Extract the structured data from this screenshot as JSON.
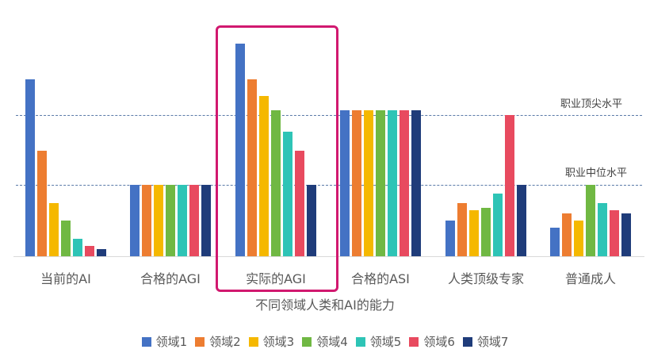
{
  "chart_data": {
    "type": "bar",
    "title": "",
    "xlabel": "不同领域人类和AI的能力",
    "ylabel": "",
    "ylim": [
      0,
      160
    ],
    "grid": false,
    "legend_position": "bottom",
    "categories": [
      "当前的AI",
      "合格的AGI",
      "实际的AGI",
      "合格的ASI",
      "人类顶级专家",
      "普通成人"
    ],
    "series": [
      {
        "name": "领域1",
        "color": "#4472c4",
        "values": [
          124,
          50,
          149,
          102,
          25,
          20
        ]
      },
      {
        "name": "领域2",
        "color": "#ed7d31",
        "values": [
          74,
          50,
          124,
          102,
          37,
          30
        ]
      },
      {
        "name": "领域3",
        "color": "#f5b800",
        "values": [
          37,
          50,
          112,
          102,
          32,
          25
        ]
      },
      {
        "name": "领域4",
        "color": "#70b843",
        "values": [
          25,
          50,
          102,
          102,
          34,
          50
        ]
      },
      {
        "name": "领域5",
        "color": "#2ec4b6",
        "values": [
          12,
          50,
          87,
          102,
          44,
          37
        ]
      },
      {
        "name": "领域6",
        "color": "#e84a5f",
        "values": [
          7,
          50,
          74,
          102,
          99,
          32
        ]
      },
      {
        "name": "领域7",
        "color": "#1f3c7a",
        "values": [
          5,
          50,
          50,
          102,
          50,
          30
        ]
      }
    ],
    "reference_lines": [
      {
        "label": "职业顶尖水平",
        "value": 99
      },
      {
        "label": "职业中位水平",
        "value": 50
      }
    ],
    "annotations": [
      {
        "type": "highlight-box",
        "target": "实际的AGI",
        "color": "#d1186f"
      }
    ]
  },
  "labels": {
    "xlabel": "不同领域人类和AI的能力",
    "top_line": "职业顶尖水平",
    "mid_line": "职业中位水平",
    "categories": [
      "当前的AI",
      "合格的AGI",
      "实际的AGI",
      "合格的ASI",
      "人类顶级专家",
      "普通成人"
    ],
    "legend": [
      "领域1",
      "领域2",
      "领域3",
      "领域4",
      "领域5",
      "领域6",
      "领域7"
    ]
  }
}
